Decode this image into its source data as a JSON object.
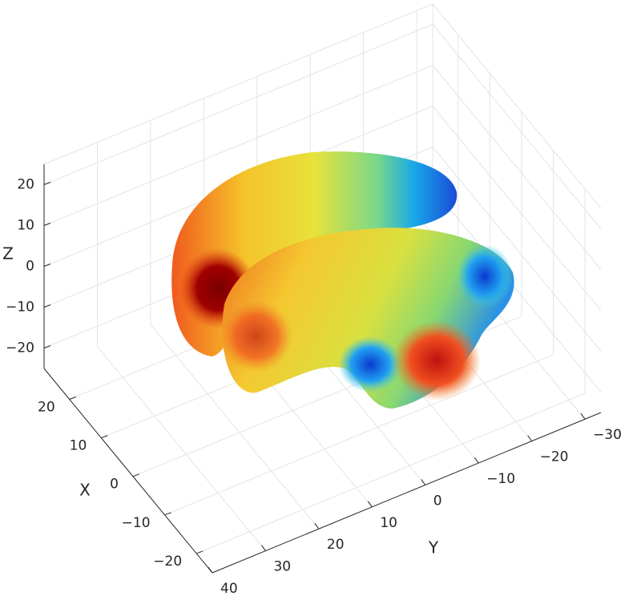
{
  "chart_data": {
    "type": "surface3d",
    "xlabel": "X",
    "ylabel": "Y",
    "zlabel": "Z",
    "xlim": [
      -25,
      28
    ],
    "ylim": [
      -33,
      40
    ],
    "zlim": [
      -25,
      25
    ],
    "xticks": [
      {
        "value": -20,
        "label": "−20"
      },
      {
        "value": -10,
        "label": "−10"
      },
      0,
      10,
      20
    ],
    "yticks": [
      {
        "value": -30,
        "label": "−30"
      },
      {
        "value": -20,
        "label": "−20"
      },
      {
        "value": -10,
        "label": "−10"
      },
      0,
      10,
      20,
      30,
      40
    ],
    "zticks": [
      {
        "value": -20,
        "label": "−20"
      },
      {
        "value": -10,
        "label": "−10"
      },
      0,
      10,
      20
    ],
    "grid": true
  }
}
